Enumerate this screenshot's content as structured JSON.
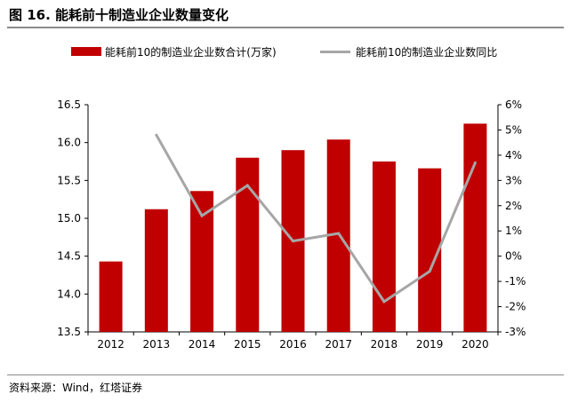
{
  "figure": {
    "title": "图 16. 能耗前十制造业企业数量变化",
    "source": "资料来源：Wind，红塔证券"
  },
  "colors": {
    "bar": "#c00000",
    "line": "#a6a6a6",
    "axis": "#000000"
  },
  "chart_data": {
    "type": "bar",
    "title": "",
    "categories": [
      "2012",
      "2013",
      "2014",
      "2015",
      "2016",
      "2017",
      "2018",
      "2019",
      "2020"
    ],
    "series": [
      {
        "name": "能耗前10的制造业企业数合计(万家)",
        "type": "bar",
        "axis": "left",
        "values": [
          14.43,
          15.12,
          15.36,
          15.8,
          15.9,
          16.04,
          15.75,
          15.66,
          16.25
        ]
      },
      {
        "name": "能耗前10的制造业企业数同比",
        "type": "line",
        "axis": "right",
        "values": [
          null,
          4.8,
          1.6,
          2.8,
          0.6,
          0.9,
          -1.8,
          -0.6,
          3.7
        ]
      }
    ],
    "y_left": {
      "min": 13.5,
      "max": 16.5,
      "step": 0.5,
      "ticks": [
        "13.5",
        "14.0",
        "14.5",
        "15.0",
        "15.5",
        "16.0",
        "16.5"
      ]
    },
    "y_right": {
      "min": -3,
      "max": 6,
      "step": 1,
      "ticks": [
        "-3%",
        "-2%",
        "-1%",
        "0%",
        "1%",
        "2%",
        "3%",
        "4%",
        "5%",
        "6%"
      ]
    },
    "legend_position": "top",
    "grid": false
  }
}
